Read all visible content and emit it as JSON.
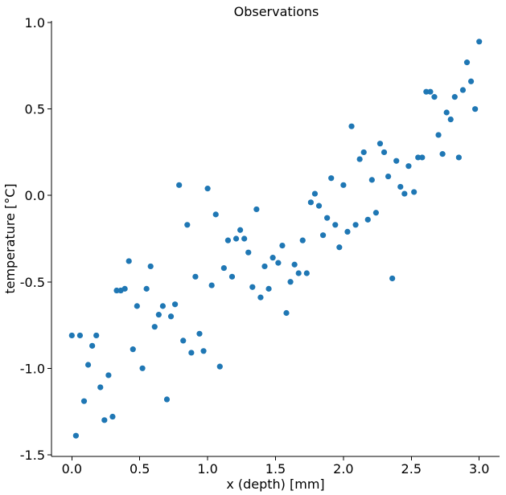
{
  "chart_data": {
    "type": "scatter",
    "title": "Observations",
    "xlabel": "x (depth) [mm]",
    "ylabel": "temperature [°C]",
    "xlim": [
      -0.15,
      3.15
    ],
    "ylim": [
      -1.51,
      1.01
    ],
    "x_ticks": [
      0.0,
      0.5,
      1.0,
      1.5,
      2.0,
      2.5,
      3.0
    ],
    "x_tick_labels": [
      "0.0",
      "0.5",
      "1.0",
      "1.5",
      "2.0",
      "2.5",
      "3.0"
    ],
    "y_ticks": [
      1.0,
      0.5,
      0.0,
      -0.5,
      -1.0,
      -1.5
    ],
    "y_tick_labels": [
      "1.0",
      "0.5",
      "0.0",
      "-0.5",
      "-1.0",
      "-1.5"
    ],
    "grid": false,
    "marker_color": "#1f77b4",
    "series": [
      {
        "x": [
          0.0,
          0.03,
          0.06,
          0.09,
          0.12,
          0.15,
          0.18,
          0.21,
          0.24,
          0.27,
          0.3,
          0.33,
          0.36,
          0.39,
          0.42,
          0.45,
          0.48,
          0.52,
          0.55,
          0.58,
          0.61,
          0.64,
          0.67,
          0.7,
          0.73,
          0.76,
          0.79,
          0.82,
          0.85,
          0.88,
          0.91,
          0.94,
          0.97,
          1.0,
          1.03,
          1.06,
          1.09,
          1.12,
          1.15,
          1.18,
          1.21,
          1.24,
          1.27,
          1.3,
          1.33,
          1.36,
          1.39,
          1.42,
          1.45,
          1.48,
          1.52,
          1.55,
          1.58,
          1.61,
          1.64,
          1.67,
          1.7,
          1.73,
          1.76,
          1.79,
          1.82,
          1.85,
          1.88,
          1.91,
          1.94,
          1.97,
          2.0,
          2.03,
          2.06,
          2.09,
          2.12,
          2.15,
          2.18,
          2.21,
          2.24,
          2.27,
          2.3,
          2.33,
          2.36,
          2.39,
          2.42,
          2.45,
          2.48,
          2.52,
          2.55,
          2.58,
          2.61,
          2.64,
          2.67,
          2.7,
          2.73,
          2.76,
          2.79,
          2.82,
          2.85,
          2.88,
          2.91,
          2.94,
          2.97,
          3.0
        ],
        "y": [
          -0.81,
          -1.39,
          -0.81,
          -1.19,
          -0.98,
          -0.87,
          -0.81,
          -1.11,
          -1.3,
          -1.04,
          -1.28,
          -0.55,
          -0.55,
          -0.54,
          -0.38,
          -0.89,
          -0.64,
          -1.0,
          -0.54,
          -0.41,
          -0.76,
          -0.69,
          -0.64,
          -1.18,
          -0.7,
          -0.63,
          0.06,
          -0.84,
          -0.17,
          -0.91,
          -0.47,
          -0.8,
          -0.9,
          0.04,
          -0.52,
          -0.11,
          -0.99,
          -0.42,
          -0.26,
          -0.47,
          -0.25,
          -0.2,
          -0.25,
          -0.33,
          -0.53,
          -0.08,
          -0.59,
          -0.41,
          -0.54,
          -0.36,
          -0.39,
          -0.29,
          -0.68,
          -0.5,
          -0.4,
          -0.45,
          -0.26,
          -0.45,
          -0.04,
          0.01,
          -0.06,
          -0.23,
          -0.13,
          0.1,
          -0.17,
          -0.3,
          0.06,
          -0.21,
          0.4,
          -0.17,
          0.21,
          0.25,
          -0.14,
          0.09,
          -0.1,
          0.3,
          0.25,
          0.11,
          -0.48,
          0.2,
          0.05,
          0.01,
          0.17,
          0.02,
          0.22,
          0.22,
          0.6,
          0.6,
          0.57,
          0.35,
          0.24,
          0.48,
          0.44,
          0.57,
          0.22,
          0.61,
          0.77,
          0.66,
          0.5,
          0.89
        ]
      }
    ]
  }
}
